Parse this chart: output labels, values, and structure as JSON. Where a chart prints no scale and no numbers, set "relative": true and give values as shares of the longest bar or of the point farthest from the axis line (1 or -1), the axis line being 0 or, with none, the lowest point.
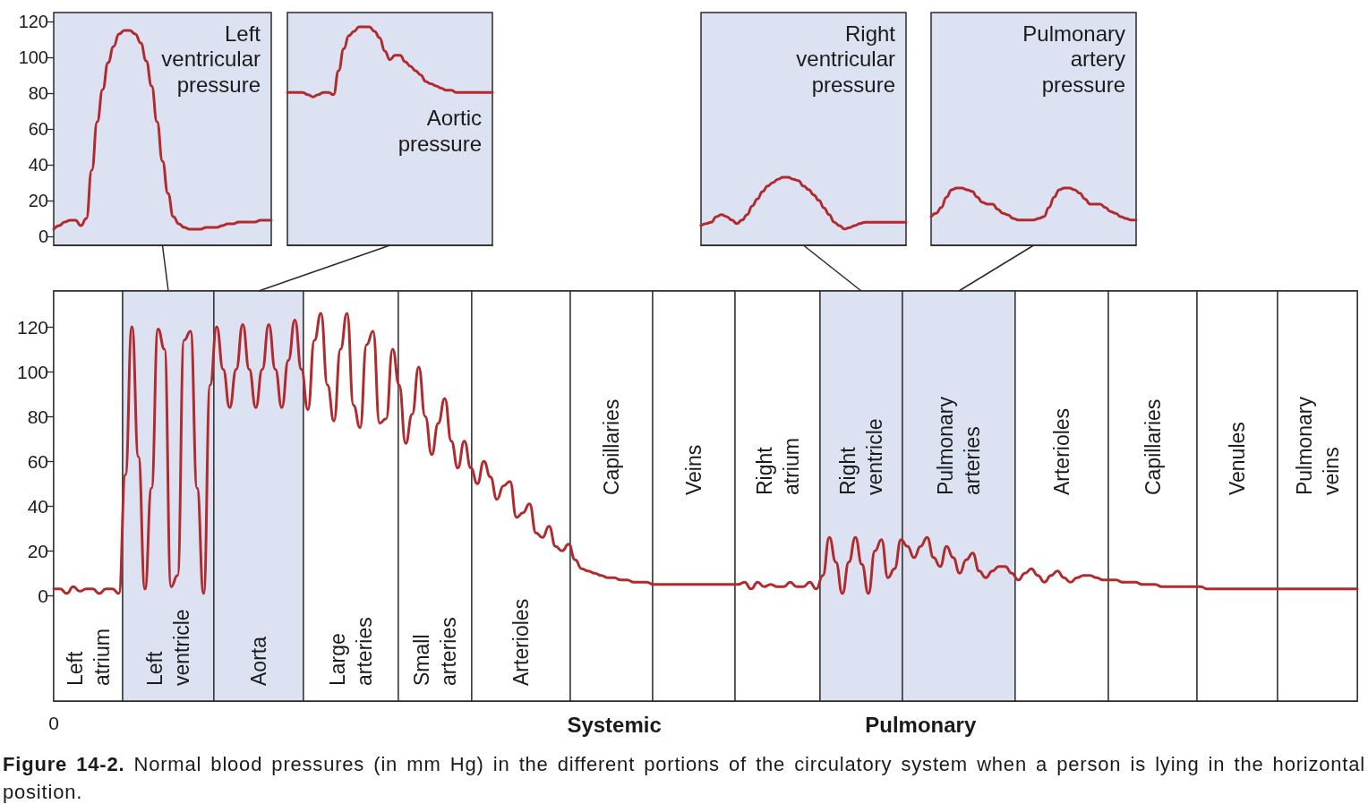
{
  "chart_data": [
    {
      "type": "line",
      "title": "Left ventricular pressure",
      "categories": [
        null,
        null,
        null,
        null,
        null,
        null,
        null,
        null,
        null,
        null,
        null,
        null,
        null,
        null,
        null,
        null,
        null,
        null,
        null,
        null,
        null,
        null,
        null,
        null,
        null,
        null,
        null,
        null,
        null,
        null,
        null,
        null,
        null,
        null,
        null,
        null,
        null,
        null,
        null,
        null,
        null
      ],
      "values": [
        4,
        6,
        8,
        9,
        9,
        6,
        10,
        37,
        64,
        82,
        97,
        106,
        113,
        115,
        115,
        113,
        108,
        98,
        84,
        64,
        42,
        24,
        11,
        7,
        5,
        4,
        4,
        4,
        5,
        5,
        5,
        6,
        7,
        7,
        8,
        8,
        8,
        8,
        9,
        9,
        9
      ],
      "color": "#b02a2e",
      "ylim": [
        -5,
        125
      ],
      "yticks": [
        0,
        20,
        40,
        60,
        80,
        100,
        120
      ],
      "tick_labels": "y"
    },
    {
      "type": "line",
      "title": "Aortic pressure",
      "relative": true,
      "tick_labels": false,
      "categories": [
        null,
        null,
        null,
        null,
        null,
        null,
        null,
        null,
        null,
        null,
        null,
        null,
        null,
        null,
        null,
        null,
        null,
        null,
        null,
        null,
        null,
        null,
        null,
        null,
        null,
        null,
        null,
        null,
        null,
        null,
        null,
        null,
        null,
        null,
        null,
        null,
        null,
        null,
        null,
        null,
        null
      ],
      "values": [
        0.7,
        0.7,
        0.7,
        0.7,
        0.69,
        0.68,
        0.69,
        0.7,
        0.7,
        0.69,
        0.8,
        0.9,
        0.96,
        0.98,
        1,
        1,
        1,
        0.98,
        0.95,
        0.89,
        0.85,
        0.87,
        0.87,
        0.84,
        0.82,
        0.8,
        0.78,
        0.75,
        0.74,
        0.73,
        0.72,
        0.71,
        0.71,
        0.7,
        0.7,
        0.7,
        0.7,
        0.7,
        0.7,
        0.7,
        0.7
      ],
      "color": "#b02a2e"
    },
    {
      "type": "line",
      "title": "Right ventricular pressure",
      "relative": true,
      "tick_labels": false,
      "categories": [
        null,
        null,
        null,
        null,
        null,
        null,
        null,
        null,
        null,
        null,
        null,
        null,
        null,
        null,
        null,
        null,
        null,
        null,
        null,
        null,
        null,
        null,
        null,
        null,
        null,
        null,
        null,
        null,
        null,
        null,
        null,
        null,
        null,
        null,
        null,
        null,
        null,
        null,
        null,
        null,
        null
      ],
      "values": [
        0.29,
        0.32,
        0.34,
        0.42,
        0.45,
        0.42,
        0.37,
        0.32,
        0.37,
        0.45,
        0.58,
        0.68,
        0.79,
        0.87,
        0.92,
        0.97,
        1,
        1,
        0.97,
        0.95,
        0.87,
        0.82,
        0.74,
        0.66,
        0.55,
        0.45,
        0.34,
        0.29,
        0.24,
        0.26,
        0.29,
        0.32,
        0.34,
        0.34,
        0.34,
        0.34,
        0.34,
        0.34,
        0.34,
        0.34,
        0.34
      ],
      "color": "#b02a2e"
    },
    {
      "type": "line",
      "title": "Pulmonary artery pressure",
      "relative": true,
      "tick_labels": false,
      "categories": [
        null,
        null,
        null,
        null,
        null,
        null,
        null,
        null,
        null,
        null,
        null,
        null,
        null,
        null,
        null,
        null,
        null,
        null,
        null,
        null,
        null,
        null,
        null,
        null,
        null,
        null,
        null,
        null,
        null,
        null,
        null,
        null,
        null,
        null,
        null,
        null,
        null,
        null,
        null,
        null,
        null
      ],
      "values": [
        0.5,
        0.56,
        0.66,
        0.84,
        0.97,
        1,
        1,
        0.97,
        0.94,
        0.84,
        0.75,
        0.72,
        0.72,
        0.63,
        0.56,
        0.53,
        0.47,
        0.44,
        0.44,
        0.44,
        0.44,
        0.47,
        0.5,
        0.66,
        0.84,
        0.97,
        1,
        1,
        0.97,
        0.91,
        0.81,
        0.72,
        0.72,
        0.72,
        0.66,
        0.59,
        0.56,
        0.5,
        0.47,
        0.44,
        0.44
      ],
      "color": "#b02a2e"
    },
    {
      "type": "line",
      "categories": [
        "0",
        null,
        null,
        null,
        null,
        null,
        null,
        null,
        null,
        null,
        null,
        null,
        null,
        null,
        null,
        null,
        null,
        null,
        null,
        null,
        null,
        null,
        null,
        null,
        null,
        null,
        null,
        null,
        null,
        null,
        null,
        null,
        null,
        null,
        null,
        null,
        null,
        null,
        null,
        null,
        null,
        null,
        null,
        null,
        null,
        null,
        null,
        null,
        null,
        null,
        null,
        null,
        null,
        null,
        null,
        null,
        null,
        null,
        null,
        null,
        null,
        null,
        null,
        null,
        null,
        null,
        null,
        null,
        null,
        null,
        null,
        null,
        null,
        null,
        null,
        null,
        null,
        null,
        null,
        null,
        null,
        null,
        null,
        null,
        null,
        null,
        "Systemic",
        null,
        null,
        null,
        null,
        null,
        null,
        null,
        null,
        null,
        null,
        null,
        null,
        null,
        null,
        null,
        null,
        null,
        null,
        null,
        null,
        null,
        null,
        null,
        null,
        null,
        null,
        null,
        null,
        null,
        null,
        null,
        null,
        null,
        null,
        null,
        null,
        null,
        null,
        null,
        null,
        null,
        null,
        null,
        null,
        null,
        null,
        "Pulmonary",
        null,
        null,
        null,
        null,
        null,
        null,
        null,
        null,
        null,
        null,
        null,
        null,
        null,
        null,
        null,
        null,
        null,
        null,
        null,
        null,
        null,
        null,
        null,
        null,
        null,
        null,
        null,
        null,
        null,
        null,
        null,
        null,
        null,
        null,
        null,
        null,
        null,
        null,
        null,
        null,
        null,
        null,
        null,
        null,
        null,
        null,
        null,
        null,
        null,
        null,
        null,
        null,
        null,
        null,
        null,
        null,
        null,
        null,
        null,
        null,
        null,
        null,
        null,
        null,
        null,
        null,
        null
      ],
      "values": [
        3,
        3,
        1,
        4,
        2,
        3,
        3,
        1,
        3,
        3,
        1,
        54,
        120,
        62,
        3,
        48,
        119,
        110,
        4,
        9,
        114,
        118,
        48,
        1,
        94,
        120,
        101,
        84,
        101,
        121,
        101,
        84,
        101,
        121,
        101,
        84,
        105,
        123,
        101,
        83,
        114,
        126,
        94,
        78,
        110,
        126,
        85,
        75,
        112,
        118,
        77,
        79,
        110,
        94,
        68,
        81,
        102,
        80,
        63,
        77,
        88,
        69,
        57,
        69,
        57,
        50,
        60,
        53,
        43,
        49,
        51,
        35,
        37,
        41,
        28,
        26,
        31,
        22,
        20,
        23,
        16,
        12,
        11,
        10,
        9,
        8,
        8,
        7,
        7,
        6,
        6,
        6,
        5,
        5,
        5,
        5,
        5,
        5,
        5,
        5,
        5,
        5,
        5,
        5,
        5,
        5,
        6,
        3,
        6,
        4,
        5,
        4,
        4,
        6,
        4,
        4,
        6,
        3,
        9,
        26,
        15,
        1,
        15,
        26,
        14,
        1,
        20,
        25,
        8,
        12,
        25,
        22,
        17,
        22,
        26,
        17,
        13,
        22,
        17,
        10,
        16,
        19,
        11,
        8,
        11,
        13,
        13,
        10,
        7,
        10,
        12,
        9,
        6,
        9,
        11,
        8,
        6,
        8,
        9,
        9,
        8,
        7,
        7,
        7,
        6,
        6,
        6,
        5,
        5,
        5,
        4,
        4,
        4,
        4,
        4,
        4,
        4,
        3,
        3,
        3,
        3,
        3,
        3,
        3,
        3,
        3,
        3,
        3,
        3,
        3,
        3,
        3,
        3,
        3,
        3,
        3,
        3,
        3,
        3,
        3,
        3
      ],
      "color": "#b02a2e",
      "ylim": [
        -47,
        136
      ],
      "yticks": [
        0,
        20,
        40,
        60,
        80,
        100,
        120
      ],
      "annotations": [
        "Left atrium",
        "Left ventricle",
        "Aorta",
        "Large arteries",
        "Small arteries",
        "Arterioles",
        "Capillaries",
        "Veins",
        "Right atrium",
        "Right ventricle",
        "Pulmonary arteries",
        "Arterioles",
        "Capillaries",
        "Venules",
        "Pulmonary veins",
        "Figure 14-2. Normal blood pressures (in mm Hg) in the different portions of the circulatory system when a person is lying in the horizontal position."
      ]
    }
  ]
}
